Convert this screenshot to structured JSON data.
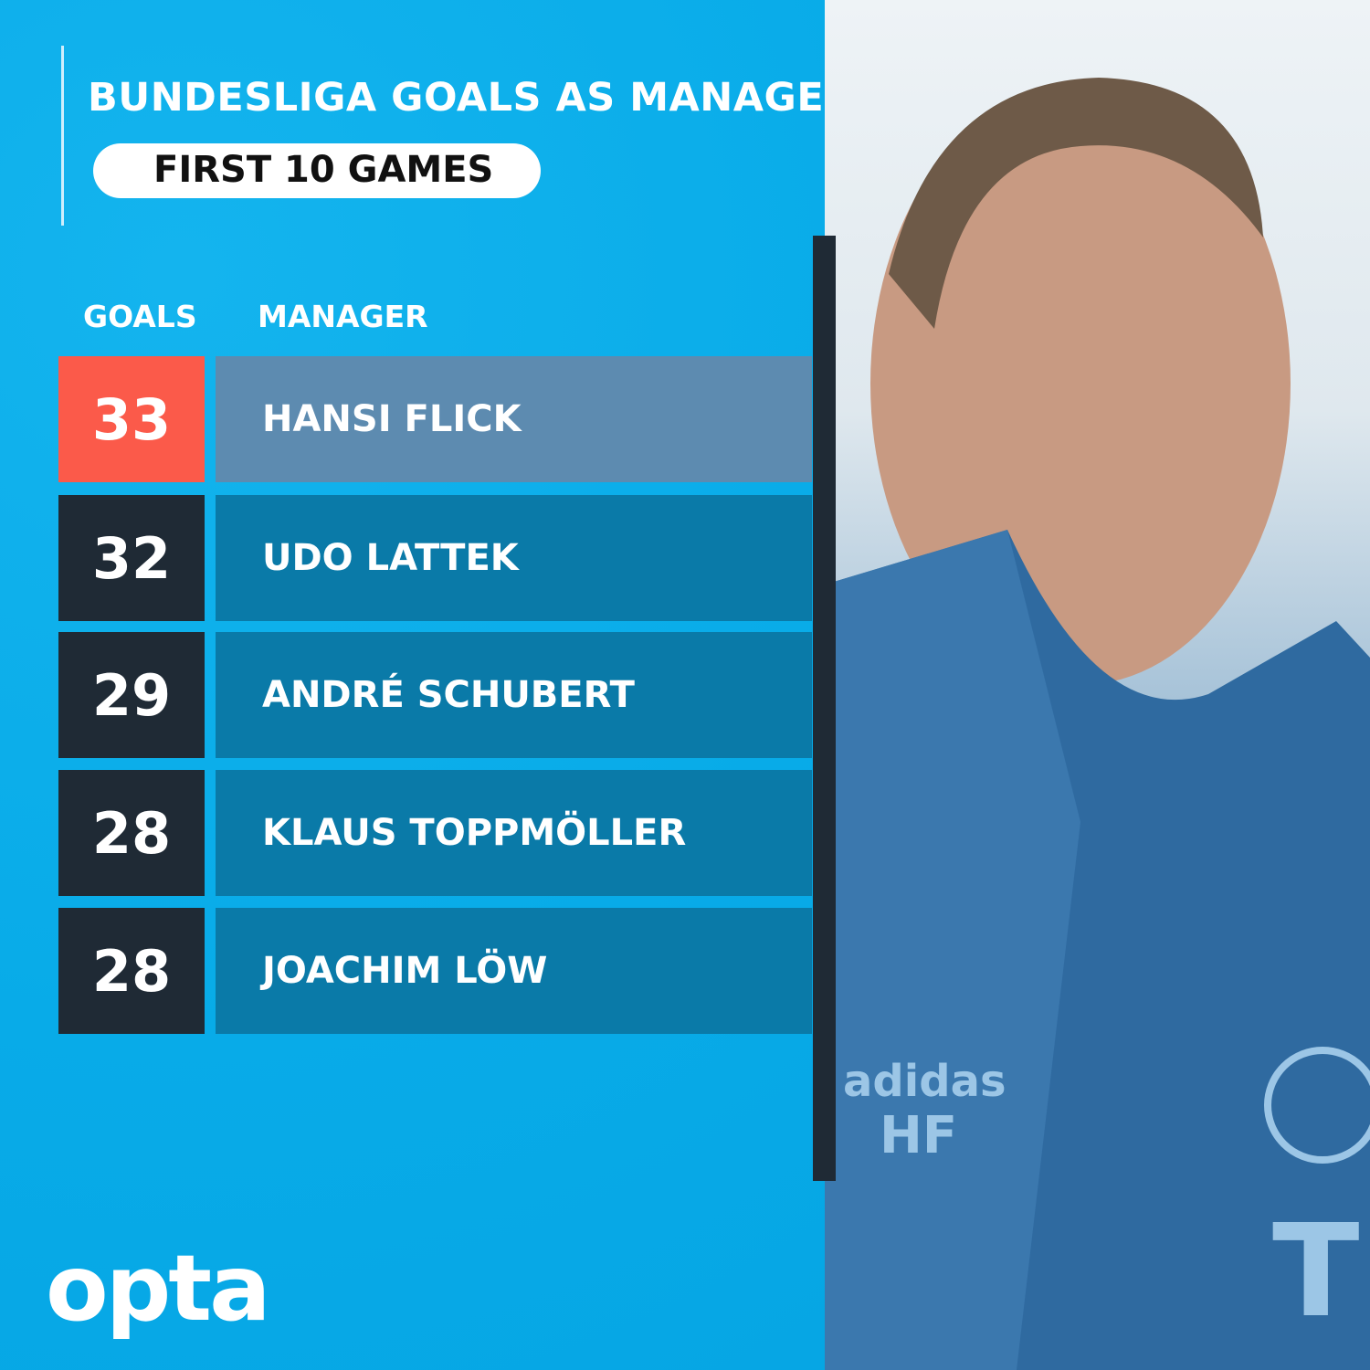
{
  "header": {
    "title": "BUNDESLIGA GOALS AS MANAGER",
    "subtitle": "FIRST 10 GAMES"
  },
  "table": {
    "columns": [
      "GOALS",
      "MANAGER"
    ],
    "rows": [
      {
        "goals": "33",
        "manager": "HANSI FLICK",
        "highlight": true
      },
      {
        "goals": "32",
        "manager": "UDO LATTEK"
      },
      {
        "goals": "29",
        "manager": "ANDRÉ SCHUBERT"
      },
      {
        "goals": "28",
        "manager": "KLAUS TOPPMÖLLER"
      },
      {
        "goals": "28",
        "manager": "JOACHIM LÖW"
      }
    ]
  },
  "photo": {
    "jacket_text": "HF",
    "sponsor": "adidas"
  },
  "brand": {
    "logo": "opta"
  },
  "colors": {
    "background": "#0aaeea",
    "highlight_goal": "#fb5a4a",
    "highlight_row": "#5d8bb0",
    "goal_box": "#1f2a35",
    "name_box": "#0a7aa8"
  }
}
